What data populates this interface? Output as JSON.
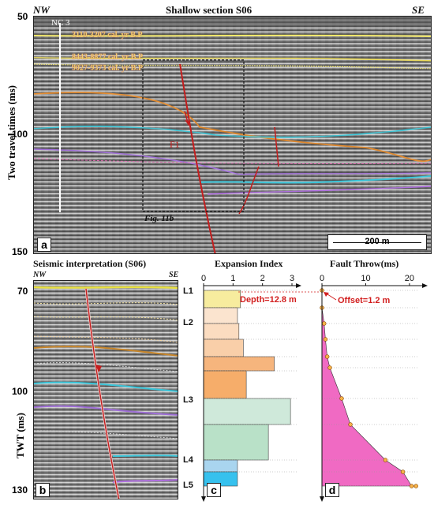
{
  "panel_a": {
    "title": "Shallow section S06",
    "dir_left": "NW",
    "dir_right": "SE",
    "well": "NC 3",
    "ages": [
      "3110-3207 cal. yr B.P",
      "8443-8877 cal. yr B.P",
      "9027-9373 cal. yr B.P"
    ],
    "fault": "F1",
    "box_label": "Fig. 11b",
    "scale_bar": "200 m",
    "y_axis_label": "Two travel times (ms)",
    "y_ticks": [
      "50",
      "100",
      "150"
    ],
    "letter": "a"
  },
  "panel_b": {
    "title": "Seismic interpretation (S06)",
    "dir_left": "NW",
    "dir_right": "SE",
    "y_axis_label": "TWT (ms)",
    "y_ticks": [
      "70",
      "100",
      "130"
    ],
    "letter": "b"
  },
  "panel_c": {
    "title": "Expansion Index",
    "x_ticks": [
      "0",
      "1",
      "2",
      "3"
    ],
    "letter": "c",
    "depth_note": "Depth=12.8 m",
    "layer_labels": [
      "L1",
      "L2",
      "L3",
      "L4",
      "L5"
    ]
  },
  "panel_d": {
    "title": "Fault Throw(ms)",
    "x_ticks": [
      "0",
      "10",
      "20"
    ],
    "letter": "d",
    "offset_note": "Offset=1.2 m"
  },
  "chart_data": [
    {
      "type": "bar",
      "title": "Expansion Index",
      "xlim": [
        0,
        3
      ],
      "orientation": "horizontal",
      "values": [
        1.25,
        1.15,
        1.2,
        1.35,
        2.4,
        1.45,
        2.95,
        2.2,
        1.15,
        1.15
      ],
      "colors": [
        "#f7ec9e",
        "#fbe4cf",
        "#fbdcc0",
        "#f9cfa9",
        "#f6b57d",
        "#f6ad6a",
        "#cfe9da",
        "#b9e1c8",
        "#a9d5ef",
        "#36c1ee"
      ]
    },
    {
      "type": "area",
      "title": "Fault Throw(ms)",
      "xlim": [
        0,
        22
      ],
      "x": [
        0,
        0,
        0.5,
        0.8,
        1.2,
        1.8,
        4.5,
        6.5,
        14.5,
        18.5,
        20.5,
        21.5
      ],
      "color": "#f06ac3"
    }
  ]
}
